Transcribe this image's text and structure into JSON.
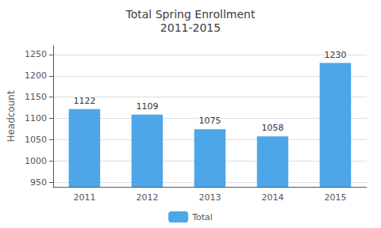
{
  "chart_data": {
    "type": "bar",
    "title": "Total Spring Enrollment\n2011-2015",
    "ylabel": "Headcount",
    "categories": [
      "2011",
      "2012",
      "2013",
      "2014",
      "2015"
    ],
    "series": [
      {
        "name": "Total",
        "color": "#4da6e8",
        "values": [
          1122,
          1109,
          1075,
          1058,
          1230
        ]
      }
    ],
    "ylim": [
      940,
      1270
    ],
    "yticks": [
      950,
      1000,
      1050,
      1100,
      1150,
      1200,
      1250
    ],
    "grid": true,
    "legend": "bottom",
    "data_labels": true
  }
}
